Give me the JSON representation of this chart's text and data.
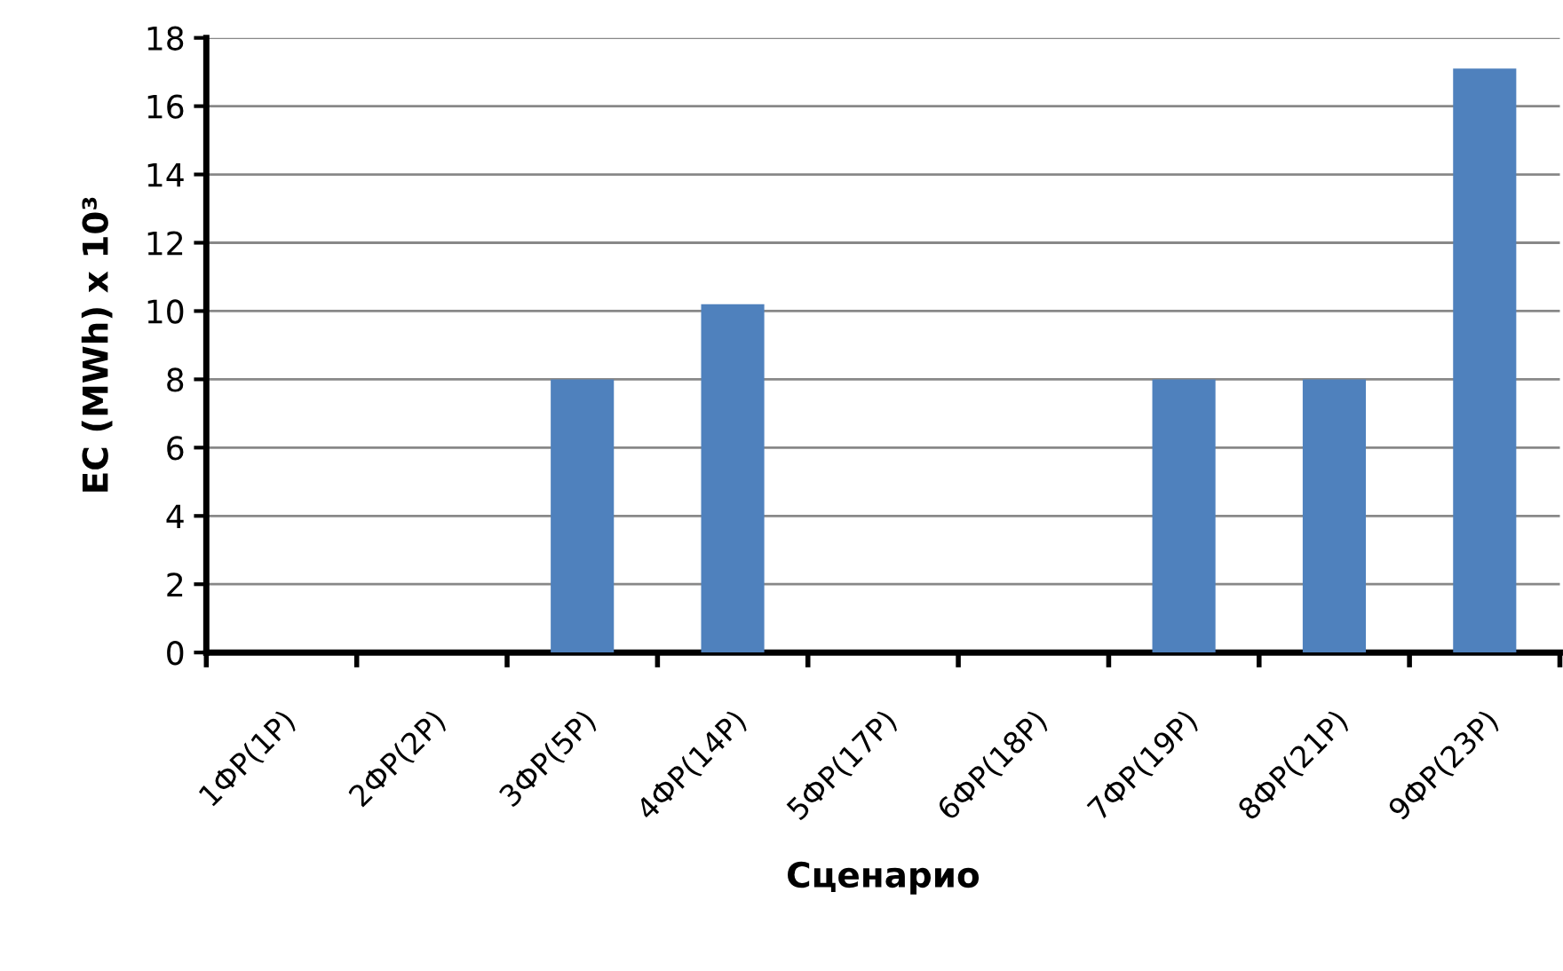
{
  "chart_data": {
    "type": "bar",
    "xlabel": "Сценарио",
    "ylabel": "EC (MWh) x 10³",
    "categories": [
      "1ФР(1Р)",
      "2ФР(2Р)",
      "3ФР(5Р)",
      "4ФР(14Р)",
      "5ФР(17Р)",
      "6ФР(18Р)",
      "7ФР(19Р)",
      "8ФР(21Р)",
      "9ФР(23Р)"
    ],
    "values": [
      0,
      0,
      8,
      10.2,
      0,
      0,
      8,
      8,
      17.1
    ],
    "color": "#4f81bd",
    "ylim": [
      0,
      18
    ],
    "yticks": [
      0,
      2,
      4,
      6,
      8,
      10,
      12,
      14,
      16,
      18
    ],
    "grid": "y",
    "legend": false
  }
}
